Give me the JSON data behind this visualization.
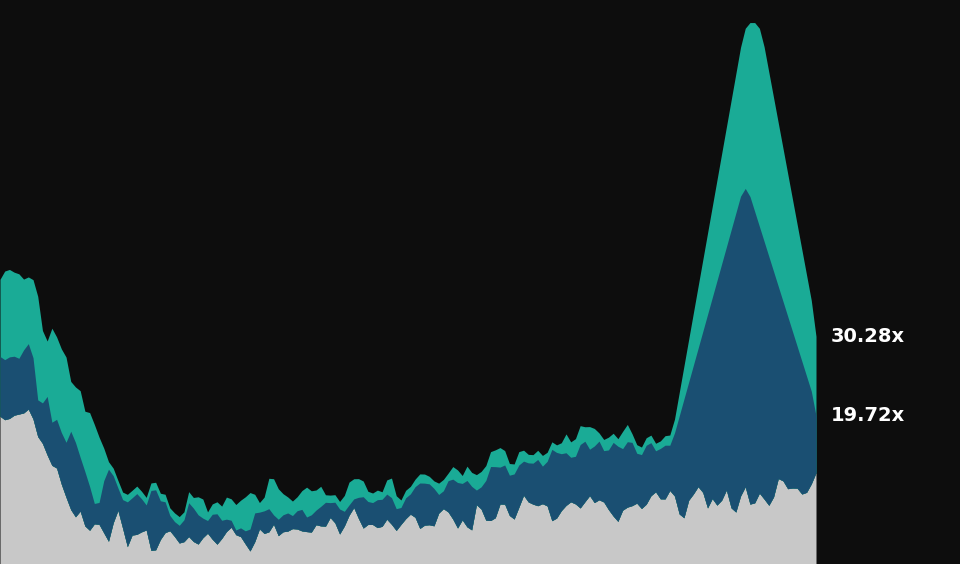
{
  "background_color": "#0d0d0d",
  "color_teal": "#1aab96",
  "color_blue": "#1a4f72",
  "color_gray": "#c8c8c8",
  "label_teal": "30.28x",
  "label_blue": "19.72x",
  "label_fontsize": 14,
  "ylim_max": 75,
  "n_points": 174,
  "seed": 99
}
